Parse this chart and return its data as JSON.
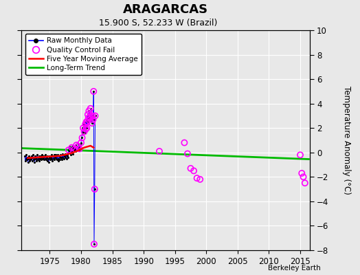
{
  "title": "ARAGARCAS",
  "subtitle": "15.900 S, 52.233 W (Brazil)",
  "ylabel": "Temperature Anomaly (°C)",
  "xlabel_credit": "Berkeley Earth",
  "xlim": [
    1970.5,
    2016.5
  ],
  "ylim": [
    -8,
    10
  ],
  "yticks": [
    -8,
    -6,
    -4,
    -2,
    0,
    2,
    4,
    6,
    8,
    10
  ],
  "xticks": [
    1975,
    1980,
    1985,
    1990,
    1995,
    2000,
    2005,
    2010,
    2015
  ],
  "bg_color": "#e8e8e8",
  "plot_bg": "#e8e8e8",
  "grid_color": "white",
  "raw_monthly_x": [
    1971.0,
    1971.08,
    1971.17,
    1971.25,
    1971.33,
    1971.42,
    1971.5,
    1971.58,
    1971.67,
    1971.75,
    1971.83,
    1971.92,
    1972.0,
    1972.08,
    1972.17,
    1972.25,
    1972.33,
    1972.42,
    1972.5,
    1972.58,
    1972.67,
    1972.75,
    1972.83,
    1972.92,
    1973.0,
    1973.08,
    1973.17,
    1973.25,
    1973.33,
    1973.42,
    1973.5,
    1973.58,
    1973.67,
    1973.75,
    1973.83,
    1973.92,
    1974.0,
    1974.08,
    1974.17,
    1974.25,
    1974.33,
    1974.42,
    1974.5,
    1974.58,
    1974.67,
    1974.75,
    1974.83,
    1974.92,
    1975.0,
    1975.08,
    1975.17,
    1975.25,
    1975.33,
    1975.42,
    1975.5,
    1975.58,
    1975.67,
    1975.75,
    1975.83,
    1975.92,
    1976.0,
    1976.08,
    1976.17,
    1976.25,
    1976.33,
    1976.42,
    1976.5,
    1976.58,
    1976.67,
    1976.75,
    1976.83,
    1976.92,
    1977.0,
    1977.08,
    1977.17,
    1977.25,
    1977.33,
    1977.42,
    1977.5,
    1977.58,
    1977.67,
    1977.75,
    1977.83,
    1977.92,
    1978.0,
    1978.08,
    1978.17,
    1978.25,
    1978.33,
    1978.42,
    1978.5,
    1978.58,
    1978.67,
    1978.75,
    1978.83,
    1978.92,
    1979.0,
    1979.08,
    1979.17,
    1979.25,
    1979.33,
    1979.42,
    1979.5,
    1979.58,
    1979.67,
    1979.75,
    1979.83,
    1979.92,
    1980.0,
    1980.08,
    1980.17,
    1980.25,
    1980.33,
    1980.42,
    1980.5,
    1980.58,
    1980.67,
    1980.75,
    1980.83,
    1980.92,
    1981.0,
    1981.08,
    1981.17,
    1981.25,
    1981.33,
    1981.42,
    1981.5,
    1981.58,
    1981.67,
    1981.75,
    1981.83,
    1981.92,
    1982.0,
    1982.08,
    1982.17,
    1982.25
  ],
  "raw_monthly_y": [
    -0.3,
    -0.7,
    -0.5,
    -0.2,
    -0.6,
    -0.4,
    -0.8,
    -0.5,
    -0.3,
    -0.7,
    -0.4,
    -0.6,
    -0.5,
    -0.3,
    -0.7,
    -0.4,
    -0.2,
    -0.6,
    -0.4,
    -0.8,
    -0.3,
    -0.5,
    -0.7,
    -0.4,
    -0.2,
    -0.6,
    -0.4,
    -0.3,
    -0.7,
    -0.5,
    -0.3,
    -0.6,
    -0.4,
    -0.2,
    -0.5,
    -0.3,
    -0.4,
    -0.6,
    -0.3,
    -0.5,
    -0.2,
    -0.6,
    -0.4,
    -0.7,
    -0.3,
    -0.5,
    -0.8,
    -0.4,
    -0.3,
    -0.6,
    -0.4,
    -0.2,
    -0.5,
    -0.7,
    -0.3,
    -0.5,
    -0.2,
    -0.6,
    -0.4,
    -0.2,
    -0.5,
    -0.3,
    -0.6,
    -0.2,
    -0.5,
    -0.7,
    -0.3,
    -0.6,
    -0.4,
    -0.2,
    -0.4,
    -0.6,
    -0.1,
    -0.4,
    -0.2,
    -0.5,
    -0.3,
    -0.1,
    -0.4,
    -0.2,
    -0.5,
    -0.3,
    -0.1,
    -0.4,
    0.2,
    0.5,
    0.1,
    0.3,
    -0.2,
    0.4,
    0.1,
    0.5,
    -0.1,
    0.3,
    0.5,
    0.2,
    0.3,
    0.6,
    0.1,
    0.4,
    0.2,
    0.5,
    0.3,
    0.7,
    0.2,
    0.5,
    0.3,
    0.6,
    0.8,
    1.2,
    1.5,
    2.0,
    1.7,
    2.3,
    1.9,
    2.5,
    1.6,
    2.1,
    2.7,
    2.0,
    2.5,
    3.1,
    2.8,
    3.4,
    2.9,
    3.2,
    2.6,
    3.6,
    2.9,
    2.4,
    3.0,
    2.7,
    5.0,
    -7.5,
    -3.0,
    3.0
  ],
  "qc_fail_x": [
    1978.0,
    1978.5,
    1979.0,
    1979.25,
    1979.5,
    1979.75,
    1980.0,
    1980.17,
    1980.33,
    1980.5,
    1980.67,
    1980.75,
    1980.83,
    1980.92,
    1981.0,
    1981.08,
    1981.17,
    1981.25,
    1981.33,
    1981.5,
    1981.67,
    1981.75,
    1981.83,
    1981.92,
    1982.0,
    1982.08,
    1982.17,
    1982.25,
    1992.5,
    1996.5,
    1997.0,
    1997.5,
    1998.0,
    1998.5,
    1999.0,
    2015.0,
    2015.25,
    2015.5,
    2015.75
  ],
  "qc_fail_y": [
    0.2,
    0.4,
    0.3,
    0.6,
    0.5,
    0.3,
    0.8,
    1.2,
    2.0,
    1.7,
    2.3,
    1.9,
    2.5,
    2.0,
    2.5,
    3.1,
    2.8,
    3.4,
    2.9,
    3.6,
    2.9,
    2.4,
    3.0,
    2.7,
    5.0,
    -7.5,
    -3.0,
    3.0,
    0.1,
    0.8,
    -0.1,
    -1.3,
    -1.5,
    -2.1,
    -2.2,
    -0.2,
    -1.7,
    -2.0,
    -2.5
  ],
  "five_year_avg_x": [
    1971.5,
    1972.5,
    1973.5,
    1974.5,
    1975.5,
    1976.5,
    1977.5,
    1978.5,
    1979.5,
    1980.5,
    1981.5,
    1982.0
  ],
  "five_year_avg_y": [
    -0.45,
    -0.42,
    -0.38,
    -0.35,
    -0.32,
    -0.28,
    -0.18,
    -0.05,
    0.15,
    0.4,
    0.55,
    0.4
  ],
  "long_trend_x": [
    1970.5,
    2016.5
  ],
  "long_trend_y": [
    0.35,
    -0.55
  ],
  "color_line": "#0000ff",
  "color_dot": "#000000",
  "color_qc": "#ff00ff",
  "color_five": "#ff0000",
  "color_trend": "#00bb00"
}
